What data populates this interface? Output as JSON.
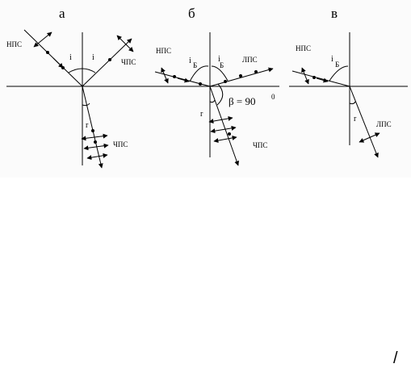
{
  "panels": [
    {
      "letter": "а",
      "labels": {
        "incident": "НПС",
        "reflected": "ЧПС",
        "refracted": "ЧПС"
      },
      "angles": {
        "incidence": "i",
        "reflection": "i",
        "refraction": "r"
      }
    },
    {
      "letter": "б",
      "labels": {
        "incident": "НПС",
        "reflected": "ЛПС",
        "refracted": "ЧПС"
      },
      "angles": {
        "incidence": "i",
        "incidence_sub": "Б",
        "reflection": "i",
        "reflection_sub": "Б",
        "refraction": "r"
      },
      "beta": "β = 90",
      "beta_sup": "0"
    },
    {
      "letter": "в",
      "labels": {
        "incident": "НПС",
        "refracted": "ЛПС"
      },
      "angles": {
        "incidence": "i",
        "incidence_sub": "Б",
        "refraction": "r"
      }
    }
  ],
  "corner_mark": "/"
}
